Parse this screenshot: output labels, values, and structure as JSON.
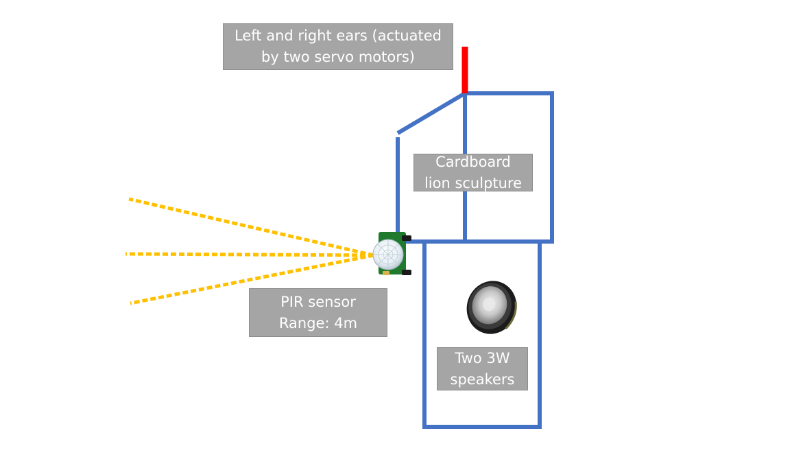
{
  "labels": {
    "ears": {
      "line1": "Left and right ears (actuated",
      "line2": "by two servo motors)"
    },
    "lion": {
      "line1": "Cardboard",
      "line2": "lion sculpture"
    },
    "pir": {
      "line1": "PIR sensor",
      "line2": "Range: 4m"
    },
    "speakers": {
      "line1": "Two 3W",
      "line2": "speakers"
    }
  },
  "colors": {
    "outline": "#4472c4",
    "ear": "#ff0000",
    "detection_rays": "#ffc000",
    "label_fill": "#a5a5a5",
    "label_text": "#ffffff",
    "sensor_board": "#1f7a2e"
  },
  "icons": {
    "sensor": "pir-sensor-icon",
    "speaker": "speaker-icon"
  }
}
